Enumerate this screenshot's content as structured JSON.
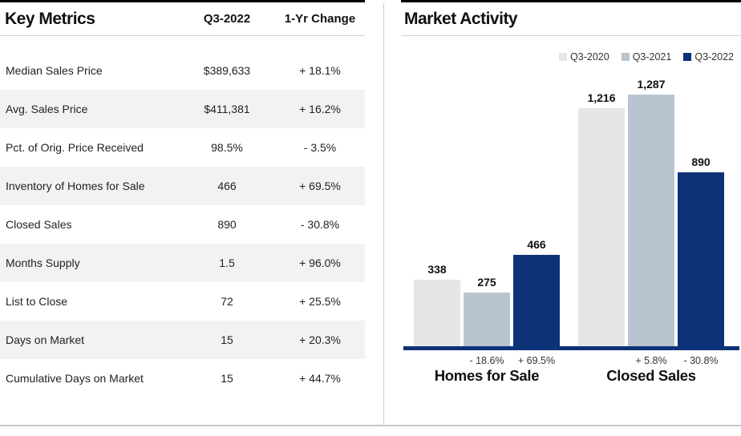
{
  "left_panel": {
    "title": "Key Metrics",
    "col_headers": {
      "period": "Q3-2022",
      "change": "1-Yr Change"
    },
    "rows": [
      {
        "label": "Median Sales Price",
        "value": "$389,633",
        "change": "+ 18.1%"
      },
      {
        "label": "Avg. Sales Price",
        "value": "$411,381",
        "change": "+ 16.2%"
      },
      {
        "label": "Pct. of Orig. Price Received",
        "value": "98.5%",
        "change": "- 3.5%"
      },
      {
        "label": "Inventory of Homes for Sale",
        "value": "466",
        "change": "+ 69.5%"
      },
      {
        "label": "Closed Sales",
        "value": "890",
        "change": "- 30.8%"
      },
      {
        "label": "Months Supply",
        "value": "1.5",
        "change": "+ 96.0%"
      },
      {
        "label": "List to Close",
        "value": "72",
        "change": "+ 25.5%"
      },
      {
        "label": "Days on Market",
        "value": "15",
        "change": "+ 20.3%"
      },
      {
        "label": "Cumulative Days on Market",
        "value": "15",
        "change": "+ 44.7%"
      }
    ]
  },
  "right_panel": {
    "title": "Market Activity",
    "legend": [
      {
        "label": "Q3-2020",
        "color": "#e4e6e7"
      },
      {
        "label": "Q3-2021",
        "color": "#b8c5d1"
      },
      {
        "label": "Q3-2022",
        "color": "#0e3278"
      }
    ]
  },
  "chart_data": {
    "type": "bar",
    "title": "Market Activity",
    "categories": [
      "Homes for Sale",
      "Closed Sales"
    ],
    "series": [
      {
        "name": "Q3-2020",
        "color": "#e4e6e7",
        "values": [
          338,
          1216
        ],
        "value_labels": [
          "338",
          "1,216"
        ],
        "pct_labels": [
          null,
          null
        ]
      },
      {
        "name": "Q3-2021",
        "color": "#b8c5d1",
        "values": [
          275,
          1287
        ],
        "value_labels": [
          "275",
          "1,287"
        ],
        "pct_labels": [
          "- 18.6%",
          "+ 5.8%"
        ]
      },
      {
        "name": "Q3-2022",
        "color": "#0e3278",
        "values": [
          466,
          890
        ],
        "value_labels": [
          "466",
          "890"
        ],
        "pct_labels": [
          "+ 69.5%",
          "- 30.8%"
        ]
      }
    ],
    "ylim": [
      0,
      1400
    ],
    "grid": false,
    "legend_position": "top-right",
    "axis_color": "#0e3278"
  }
}
